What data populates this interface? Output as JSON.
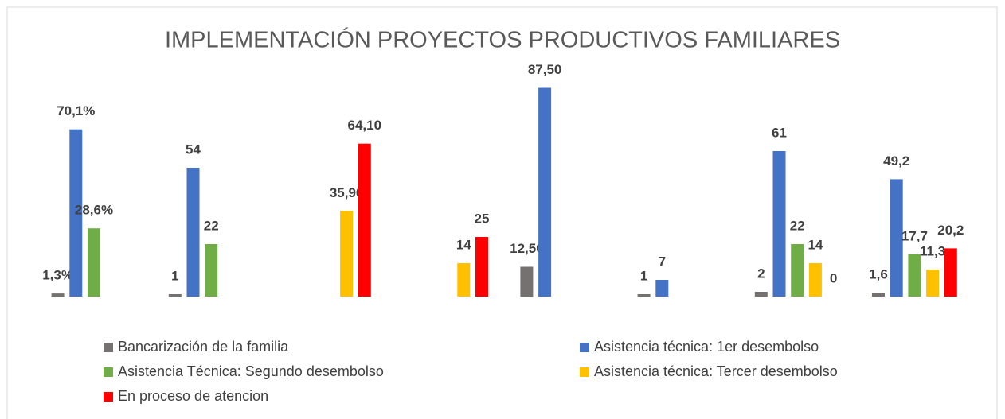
{
  "chart_data": {
    "type": "bar",
    "title": "IMPLEMENTACIÓN PROYECTOS PRODUCTIVOS FAMILIARES",
    "categories": [
      null,
      null,
      null,
      null,
      null,
      null,
      null,
      null
    ],
    "ylim": [
      0,
      100
    ],
    "legend": "bottom",
    "series": [
      {
        "name": "Bancarización de la familia",
        "color": "#767171",
        "values": [
          1.3,
          1,
          null,
          null,
          12.5,
          1,
          2,
          1.6
        ],
        "value_labels": [
          "1,3%",
          "1",
          null,
          null,
          "12,50",
          "1",
          "2",
          "1,6"
        ]
      },
      {
        "name": "Asistencia técnica: 1er desembolso",
        "color": "#4472c4",
        "values": [
          70.1,
          54,
          null,
          null,
          87.5,
          7,
          61,
          49.2
        ],
        "value_labels": [
          "70,1%",
          "54",
          null,
          null,
          "87,50",
          "7",
          "61",
          "49,2"
        ]
      },
      {
        "name": "Asistencia Técnica: Segundo desembolso",
        "color": "#70ad47",
        "values": [
          28.6,
          22,
          null,
          null,
          null,
          null,
          22,
          17.7
        ],
        "value_labels": [
          "28,6%",
          "22",
          null,
          null,
          null,
          null,
          "22",
          "17,7"
        ]
      },
      {
        "name": "Asistencia técnica: Tercer desembolso",
        "color": "#ffc000",
        "values": [
          null,
          null,
          35.9,
          14,
          null,
          null,
          14,
          11.3
        ],
        "value_labels": [
          null,
          null,
          "35,90",
          "14",
          null,
          null,
          "14",
          "11,3"
        ]
      },
      {
        "name": "En proceso de atencion",
        "color": "#ff0000",
        "values": [
          null,
          null,
          64.1,
          25,
          null,
          null,
          0,
          20.2
        ],
        "value_labels": [
          null,
          null,
          "64,10",
          "25",
          null,
          null,
          "0",
          "20,2"
        ]
      }
    ]
  }
}
